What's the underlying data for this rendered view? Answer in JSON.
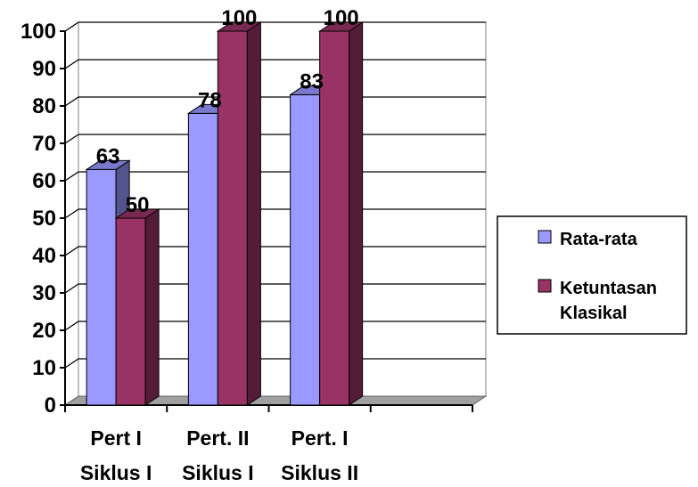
{
  "chart_data": {
    "type": "bar",
    "categories": [
      [
        "Pert I",
        "Siklus I"
      ],
      [
        "Pert. II",
        "Siklus I"
      ],
      [
        "Pert. I",
        "Siklus II"
      ],
      [
        "",
        ""
      ]
    ],
    "series": [
      {
        "name": "Rata-rata",
        "values": [
          63,
          78,
          83,
          null
        ],
        "color": "#9999ff"
      },
      {
        "name": "Ketuntasan Klasikal",
        "values": [
          50,
          100,
          100,
          null
        ],
        "color": "#993366"
      }
    ],
    "data_labels": [
      [
        "63",
        "78",
        "83",
        ""
      ],
      [
        "50",
        "100",
        "100",
        ""
      ]
    ],
    "ylim": [
      0,
      100
    ],
    "yticks": [
      0,
      10,
      20,
      30,
      40,
      50,
      60,
      70,
      80,
      90,
      100
    ],
    "title": "",
    "xlabel": "",
    "ylabel": "",
    "grid": true,
    "style": "3d-clustered-column",
    "legend": {
      "position": "right",
      "entries": [
        [
          "Rata-rata"
        ],
        [
          "Ketuntasan",
          "Klasikal"
        ]
      ]
    }
  }
}
